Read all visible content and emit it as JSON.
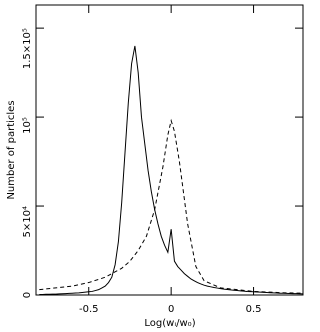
{
  "chart_data": {
    "type": "line",
    "x_label": "Log(wᵢ/w₀)",
    "y_label": "Number of particles",
    "xlim": [
      -0.82,
      0.8
    ],
    "ylim": [
      0,
      163000
    ],
    "xticks": [
      -0.5,
      0,
      0.5
    ],
    "yticks": [
      0,
      {
        "value": 50000,
        "label": "5×10⁴"
      },
      {
        "value": 100000,
        "label": "10⁵"
      },
      {
        "value": 150000,
        "label": "1.5×10⁵"
      }
    ],
    "series": [
      {
        "color": "#000000",
        "dash": false,
        "x": [
          -0.8,
          -0.78,
          -0.76,
          -0.74,
          -0.72,
          -0.7,
          -0.68,
          -0.66,
          -0.64,
          -0.62,
          -0.6,
          -0.58,
          -0.56,
          -0.54,
          -0.52,
          -0.5,
          -0.48,
          -0.46,
          -0.44,
          -0.42,
          -0.4,
          -0.38,
          -0.36,
          -0.34,
          -0.32,
          -0.3,
          -0.28,
          -0.26,
          -0.24,
          -0.22,
          -0.2,
          -0.18,
          -0.16,
          -0.14,
          -0.12,
          -0.1,
          -0.08,
          -0.06,
          -0.04,
          -0.02,
          0,
          0.02,
          0.04,
          0.06,
          0.08,
          0.1,
          0.12,
          0.14,
          0.16,
          0.18,
          0.2,
          0.22,
          0.24,
          0.26,
          0.28,
          0.3,
          0.32,
          0.34,
          0.36,
          0.38,
          0.4,
          0.42,
          0.44,
          0.46,
          0.48,
          0.5,
          0.52,
          0.54,
          0.56,
          0.58,
          0.6,
          0.62,
          0.64,
          0.66,
          0.68,
          0.7,
          0.72,
          0.74,
          0.76,
          0.78,
          0.8
        ],
        "values": [
          300,
          300,
          400,
          400,
          500,
          500,
          600,
          700,
          800,
          900,
          1000,
          1100,
          1200,
          1400,
          1600,
          1800,
          2000,
          2500,
          3000,
          4000,
          5000,
          7000,
          10000,
          17000,
          30000,
          52000,
          80000,
          108000,
          130000,
          140000,
          125000,
          100000,
          85000,
          70000,
          58000,
          48000,
          40000,
          33000,
          28000,
          24000,
          37000,
          19000,
          16000,
          14000,
          12000,
          10500,
          9000,
          8000,
          7000,
          6200,
          5500,
          5000,
          4600,
          4200,
          3900,
          3600,
          3300,
          3100,
          2900,
          2700,
          2500,
          2300,
          2200,
          2000,
          1900,
          1800,
          1700,
          1600,
          1500,
          1400,
          1300,
          1200,
          1100,
          1000,
          950,
          900,
          850,
          800,
          750,
          700,
          650
        ]
      },
      {
        "color": "#000000",
        "dash": true,
        "x": [
          -0.8,
          -0.7,
          -0.6,
          -0.5,
          -0.4,
          -0.3,
          -0.25,
          -0.2,
          -0.15,
          -0.1,
          -0.05,
          -0.02,
          0,
          0.02,
          0.05,
          0.1,
          0.15,
          0.2,
          0.3,
          0.4,
          0.5,
          0.6,
          0.7,
          0.8
        ],
        "values": [
          3000,
          4000,
          5000,
          7000,
          10000,
          15000,
          19000,
          25000,
          33000,
          48000,
          72000,
          90000,
          98000,
          92000,
          75000,
          40000,
          16000,
          8000,
          4000,
          3000,
          2000,
          1600,
          1200,
          1000
        ]
      }
    ]
  }
}
